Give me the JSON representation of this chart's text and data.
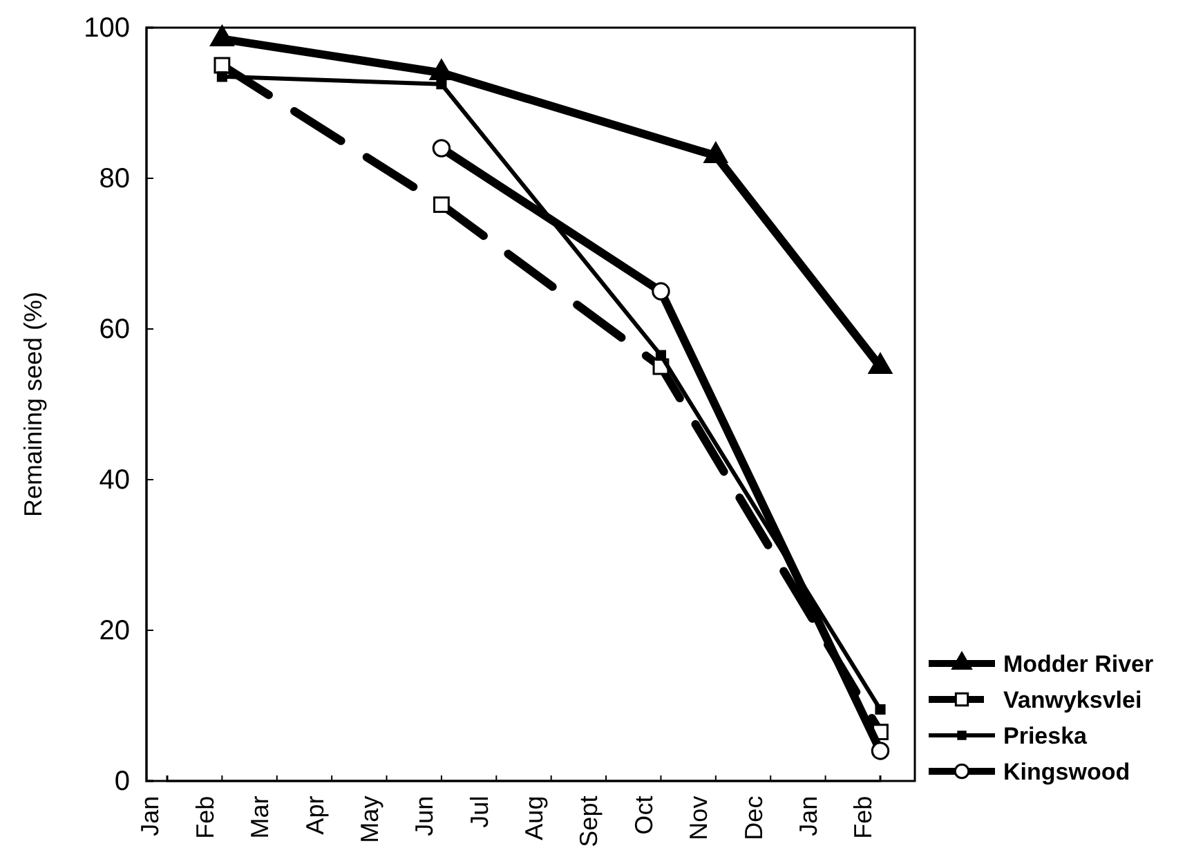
{
  "chart_data": {
    "type": "line",
    "ylabel": "Remaining seed (%)",
    "categories": [
      "Jan",
      "Feb",
      "Mar",
      "Apr",
      "May",
      "Jun",
      "Jul",
      "Aug",
      "Sept",
      "Oct",
      "Nov",
      "Dec",
      "Jan",
      "Feb"
    ],
    "ylim": [
      0,
      100
    ],
    "yticks": [
      0,
      20,
      40,
      60,
      80,
      100
    ],
    "grid": false,
    "legend": "bottom right",
    "series": [
      {
        "name": "Modder River",
        "color": "#000000",
        "marker": "triangle",
        "line_style": "solid",
        "values": [
          null,
          98.5,
          null,
          null,
          null,
          94,
          null,
          null,
          null,
          null,
          83,
          null,
          null,
          55
        ]
      },
      {
        "name": "Vanwyksvlei",
        "color": "#000000",
        "marker": "square",
        "line_style": "dashed",
        "values": [
          null,
          95,
          null,
          null,
          null,
          76.5,
          null,
          null,
          null,
          55,
          null,
          null,
          null,
          6.5
        ]
      },
      {
        "name": "Prieska",
        "color": "#000000",
        "marker": "square",
        "line_style": "solid",
        "values": [
          null,
          93.5,
          null,
          null,
          null,
          92.5,
          null,
          null,
          null,
          56.5,
          null,
          null,
          null,
          9.5
        ]
      },
      {
        "name": "Kingswood",
        "color": "#000000",
        "marker": "circle",
        "line_style": "solid",
        "values": [
          null,
          null,
          null,
          null,
          null,
          84,
          null,
          null,
          null,
          65,
          null,
          null,
          null,
          4
        ]
      }
    ]
  }
}
